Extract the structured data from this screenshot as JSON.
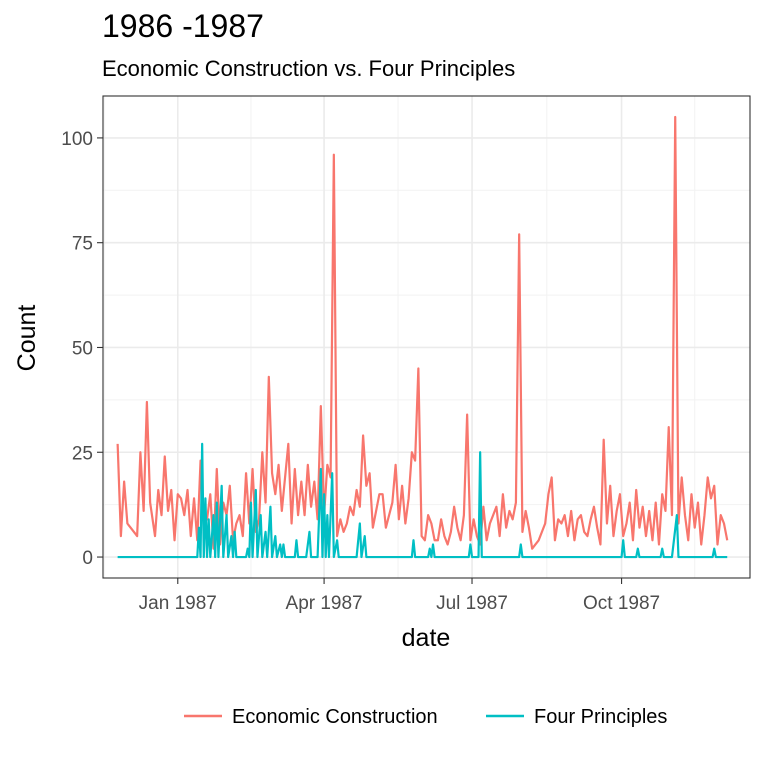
{
  "chart_data": {
    "type": "line",
    "title": "1986 -1987",
    "subtitle": "Economic Construction vs. Four Principles",
    "xlabel": "date",
    "ylabel": "Count",
    "x_ticks": [
      {
        "date": "1987-01-01",
        "label": "Jan 1987"
      },
      {
        "date": "1987-04-01",
        "label": "Apr 1987"
      },
      {
        "date": "1987-07-01",
        "label": "Jul 1987"
      },
      {
        "date": "1987-10-01",
        "label": "Oct 1987"
      }
    ],
    "xlim": [
      "1986-11-16",
      "1987-12-19"
    ],
    "y_ticks": [
      0,
      25,
      50,
      75,
      100
    ],
    "ylim": [
      -5,
      110
    ],
    "grid": true,
    "legend_position": "bottom",
    "series": [
      {
        "name": "Economic Construction",
        "color": "#F8766D",
        "points": [
          [
            "1986-11-25",
            27
          ],
          [
            "1986-11-27",
            5
          ],
          [
            "1986-11-29",
            18
          ],
          [
            "1986-12-01",
            8
          ],
          [
            "1986-12-03",
            7
          ],
          [
            "1986-12-07",
            5
          ],
          [
            "1986-12-09",
            25
          ],
          [
            "1986-12-11",
            11
          ],
          [
            "1986-12-13",
            37
          ],
          [
            "1986-12-15",
            13
          ],
          [
            "1986-12-18",
            5
          ],
          [
            "1986-12-20",
            16
          ],
          [
            "1986-12-22",
            10
          ],
          [
            "1986-12-24",
            24
          ],
          [
            "1986-12-26",
            11
          ],
          [
            "1986-12-28",
            16
          ],
          [
            "1986-12-30",
            4
          ],
          [
            "1987-01-01",
            15
          ],
          [
            "1987-01-03",
            14
          ],
          [
            "1987-01-05",
            10
          ],
          [
            "1987-01-07",
            16
          ],
          [
            "1987-01-09",
            5
          ],
          [
            "1987-01-11",
            14
          ],
          [
            "1987-01-13",
            4
          ],
          [
            "1987-01-15",
            23
          ],
          [
            "1987-01-17",
            10
          ],
          [
            "1987-01-19",
            9
          ],
          [
            "1987-01-21",
            15
          ],
          [
            "1987-01-23",
            2
          ],
          [
            "1987-01-25",
            21
          ],
          [
            "1987-01-27",
            3
          ],
          [
            "1987-01-29",
            13
          ],
          [
            "1987-01-31",
            10
          ],
          [
            "1987-02-02",
            17
          ],
          [
            "1987-02-04",
            4
          ],
          [
            "1987-02-06",
            8
          ],
          [
            "1987-02-08",
            10
          ],
          [
            "1987-02-10",
            5
          ],
          [
            "1987-02-12",
            20
          ],
          [
            "1987-02-14",
            8
          ],
          [
            "1987-02-16",
            21
          ],
          [
            "1987-02-18",
            6
          ],
          [
            "1987-02-20",
            9
          ],
          [
            "1987-02-22",
            25
          ],
          [
            "1987-02-24",
            13
          ],
          [
            "1987-02-26",
            43
          ],
          [
            "1987-02-28",
            20
          ],
          [
            "1987-03-02",
            15
          ],
          [
            "1987-03-04",
            22
          ],
          [
            "1987-03-06",
            11
          ],
          [
            "1987-03-08",
            19
          ],
          [
            "1987-03-10",
            27
          ],
          [
            "1987-03-12",
            8
          ],
          [
            "1987-03-14",
            21
          ],
          [
            "1987-03-16",
            10
          ],
          [
            "1987-03-18",
            18
          ],
          [
            "1987-03-20",
            10
          ],
          [
            "1987-03-22",
            22
          ],
          [
            "1987-03-24",
            12
          ],
          [
            "1987-03-26",
            18
          ],
          [
            "1987-03-28",
            9
          ],
          [
            "1987-03-30",
            36
          ],
          [
            "1987-04-01",
            10
          ],
          [
            "1987-04-03",
            22
          ],
          [
            "1987-04-05",
            19
          ],
          [
            "1987-04-07",
            96
          ],
          [
            "1987-04-09",
            5
          ],
          [
            "1987-04-11",
            9
          ],
          [
            "1987-04-13",
            6
          ],
          [
            "1987-04-15",
            8
          ],
          [
            "1987-04-17",
            12
          ],
          [
            "1987-04-19",
            10
          ],
          [
            "1987-04-21",
            16
          ],
          [
            "1987-04-23",
            12
          ],
          [
            "1987-04-25",
            29
          ],
          [
            "1987-04-27",
            17
          ],
          [
            "1987-04-29",
            20
          ],
          [
            "1987-05-01",
            7
          ],
          [
            "1987-05-03",
            11
          ],
          [
            "1987-05-05",
            15
          ],
          [
            "1987-05-07",
            15
          ],
          [
            "1987-05-09",
            7
          ],
          [
            "1987-05-11",
            10
          ],
          [
            "1987-05-13",
            13
          ],
          [
            "1987-05-15",
            22
          ],
          [
            "1987-05-17",
            9
          ],
          [
            "1987-05-19",
            17
          ],
          [
            "1987-05-21",
            8
          ],
          [
            "1987-05-23",
            14
          ],
          [
            "1987-05-25",
            25
          ],
          [
            "1987-05-27",
            23
          ],
          [
            "1987-05-29",
            45
          ],
          [
            "1987-05-31",
            5
          ],
          [
            "1987-06-02",
            4
          ],
          [
            "1987-06-04",
            10
          ],
          [
            "1987-06-06",
            8
          ],
          [
            "1987-06-08",
            4
          ],
          [
            "1987-06-10",
            4
          ],
          [
            "1987-06-12",
            9
          ],
          [
            "1987-06-14",
            5
          ],
          [
            "1987-06-16",
            3
          ],
          [
            "1987-06-18",
            6
          ],
          [
            "1987-06-20",
            12
          ],
          [
            "1987-06-22",
            7
          ],
          [
            "1987-06-24",
            4
          ],
          [
            "1987-06-26",
            10
          ],
          [
            "1987-06-28",
            34
          ],
          [
            "1987-06-30",
            4
          ],
          [
            "1987-07-02",
            9
          ],
          [
            "1987-07-04",
            5
          ],
          [
            "1987-07-06",
            3
          ],
          [
            "1987-07-08",
            12
          ],
          [
            "1987-07-10",
            4
          ],
          [
            "1987-07-12",
            8
          ],
          [
            "1987-07-14",
            10
          ],
          [
            "1987-07-16",
            12
          ],
          [
            "1987-07-18",
            5
          ],
          [
            "1987-07-20",
            15
          ],
          [
            "1987-07-22",
            7
          ],
          [
            "1987-07-24",
            11
          ],
          [
            "1987-07-26",
            9
          ],
          [
            "1987-07-28",
            13
          ],
          [
            "1987-07-30",
            77
          ],
          [
            "1987-08-01",
            6
          ],
          [
            "1987-08-03",
            11
          ],
          [
            "1987-08-05",
            7
          ],
          [
            "1987-08-07",
            2
          ],
          [
            "1987-08-09",
            3
          ],
          [
            "1987-08-11",
            4
          ],
          [
            "1987-08-13",
            6
          ],
          [
            "1987-08-15",
            8
          ],
          [
            "1987-08-17",
            15
          ],
          [
            "1987-08-19",
            19
          ],
          [
            "1987-08-21",
            4
          ],
          [
            "1987-08-23",
            9
          ],
          [
            "1987-08-25",
            8
          ],
          [
            "1987-08-27",
            10
          ],
          [
            "1987-08-29",
            5
          ],
          [
            "1987-08-31",
            11
          ],
          [
            "1987-09-02",
            4
          ],
          [
            "1987-09-04",
            9
          ],
          [
            "1987-09-06",
            10
          ],
          [
            "1987-09-08",
            6
          ],
          [
            "1987-09-10",
            5
          ],
          [
            "1987-09-12",
            9
          ],
          [
            "1987-09-14",
            12
          ],
          [
            "1987-09-16",
            7
          ],
          [
            "1987-09-18",
            3
          ],
          [
            "1987-09-20",
            28
          ],
          [
            "1987-09-22",
            8
          ],
          [
            "1987-09-24",
            17
          ],
          [
            "1987-09-26",
            5
          ],
          [
            "1987-09-28",
            11
          ],
          [
            "1987-09-30",
            15
          ],
          [
            "1987-10-02",
            5
          ],
          [
            "1987-10-04",
            8
          ],
          [
            "1987-10-06",
            13
          ],
          [
            "1987-10-08",
            4
          ],
          [
            "1987-10-10",
            16
          ],
          [
            "1987-10-12",
            7
          ],
          [
            "1987-10-14",
            12
          ],
          [
            "1987-10-16",
            5
          ],
          [
            "1987-10-18",
            11
          ],
          [
            "1987-10-20",
            4
          ],
          [
            "1987-10-22",
            13
          ],
          [
            "1987-10-24",
            3
          ],
          [
            "1987-10-26",
            15
          ],
          [
            "1987-10-28",
            11
          ],
          [
            "1987-10-30",
            31
          ],
          [
            "1987-11-01",
            10
          ],
          [
            "1987-11-03",
            105
          ],
          [
            "1987-11-05",
            8
          ],
          [
            "1987-11-07",
            19
          ],
          [
            "1987-11-09",
            10
          ],
          [
            "1987-11-11",
            4
          ],
          [
            "1987-11-13",
            15
          ],
          [
            "1987-11-15",
            7
          ],
          [
            "1987-11-17",
            13
          ],
          [
            "1987-11-19",
            3
          ],
          [
            "1987-11-21",
            10
          ],
          [
            "1987-11-23",
            19
          ],
          [
            "1987-11-25",
            14
          ],
          [
            "1987-11-27",
            17
          ],
          [
            "1987-11-29",
            3
          ],
          [
            "1987-12-01",
            10
          ],
          [
            "1987-12-03",
            8
          ],
          [
            "1987-12-05",
            4
          ]
        ]
      },
      {
        "name": "Four Principles",
        "color": "#00BFC4",
        "points": [
          [
            "1986-11-25",
            0
          ],
          [
            "1987-01-13",
            0
          ],
          [
            "1987-01-14",
            7
          ],
          [
            "1987-01-15",
            0
          ],
          [
            "1987-01-16",
            27
          ],
          [
            "1987-01-17",
            0
          ],
          [
            "1987-01-18",
            14
          ],
          [
            "1987-01-19",
            0
          ],
          [
            "1987-01-20",
            9
          ],
          [
            "1987-01-21",
            0
          ],
          [
            "1987-01-23",
            10
          ],
          [
            "1987-01-24",
            0
          ],
          [
            "1987-01-25",
            13
          ],
          [
            "1987-01-26",
            0
          ],
          [
            "1987-01-28",
            17
          ],
          [
            "1987-01-29",
            0
          ],
          [
            "1987-01-31",
            10
          ],
          [
            "1987-02-01",
            0
          ],
          [
            "1987-02-03",
            5
          ],
          [
            "1987-02-04",
            0
          ],
          [
            "1987-02-05",
            6
          ],
          [
            "1987-02-06",
            0
          ],
          [
            "1987-02-12",
            0
          ],
          [
            "1987-02-13",
            2
          ],
          [
            "1987-02-14",
            0
          ],
          [
            "1987-02-15",
            13
          ],
          [
            "1987-02-16",
            0
          ],
          [
            "1987-02-18",
            16
          ],
          [
            "1987-02-19",
            0
          ],
          [
            "1987-02-21",
            10
          ],
          [
            "1987-02-22",
            0
          ],
          [
            "1987-02-24",
            6
          ],
          [
            "1987-02-25",
            0
          ],
          [
            "1987-02-27",
            12
          ],
          [
            "1987-02-28",
            0
          ],
          [
            "1987-03-02",
            5
          ],
          [
            "1987-03-03",
            0
          ],
          [
            "1987-03-05",
            3
          ],
          [
            "1987-03-06",
            0
          ],
          [
            "1987-03-07",
            3
          ],
          [
            "1987-03-08",
            0
          ],
          [
            "1987-03-14",
            0
          ],
          [
            "1987-03-15",
            4
          ],
          [
            "1987-03-16",
            0
          ],
          [
            "1987-03-21",
            0
          ],
          [
            "1987-03-23",
            6
          ],
          [
            "1987-03-24",
            0
          ],
          [
            "1987-03-28",
            0
          ],
          [
            "1987-03-30",
            21
          ],
          [
            "1987-03-31",
            0
          ],
          [
            "1987-04-01",
            15
          ],
          [
            "1987-04-02",
            0
          ],
          [
            "1987-04-03",
            10
          ],
          [
            "1987-04-04",
            0
          ],
          [
            "1987-04-06",
            20
          ],
          [
            "1987-04-07",
            0
          ],
          [
            "1987-04-09",
            4
          ],
          [
            "1987-04-10",
            0
          ],
          [
            "1987-04-21",
            0
          ],
          [
            "1987-04-23",
            8
          ],
          [
            "1987-04-24",
            0
          ],
          [
            "1987-04-26",
            5
          ],
          [
            "1987-04-27",
            0
          ],
          [
            "1987-05-25",
            0
          ],
          [
            "1987-05-26",
            4
          ],
          [
            "1987-05-27",
            0
          ],
          [
            "1987-06-04",
            0
          ],
          [
            "1987-06-05",
            2
          ],
          [
            "1987-06-06",
            0
          ],
          [
            "1987-06-07",
            3
          ],
          [
            "1987-06-08",
            0
          ],
          [
            "1987-06-29",
            0
          ],
          [
            "1987-06-30",
            3
          ],
          [
            "1987-07-01",
            0
          ],
          [
            "1987-07-05",
            0
          ],
          [
            "1987-07-06",
            25
          ],
          [
            "1987-07-07",
            0
          ],
          [
            "1987-07-30",
            0
          ],
          [
            "1987-07-31",
            3
          ],
          [
            "1987-08-01",
            0
          ],
          [
            "1987-10-01",
            0
          ],
          [
            "1987-10-02",
            4
          ],
          [
            "1987-10-03",
            0
          ],
          [
            "1987-10-10",
            0
          ],
          [
            "1987-10-11",
            2
          ],
          [
            "1987-10-12",
            0
          ],
          [
            "1987-10-25",
            0
          ],
          [
            "1987-10-26",
            2
          ],
          [
            "1987-10-27",
            0
          ],
          [
            "1987-11-01",
            0
          ],
          [
            "1987-11-04",
            10
          ],
          [
            "1987-11-05",
            0
          ],
          [
            "1987-11-26",
            0
          ],
          [
            "1987-11-27",
            2
          ],
          [
            "1987-11-28",
            0
          ],
          [
            "1987-12-05",
            0
          ]
        ]
      }
    ]
  }
}
